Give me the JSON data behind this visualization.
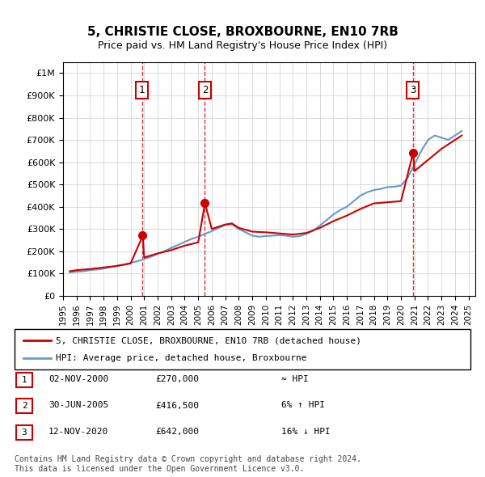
{
  "title": "5, CHRISTIE CLOSE, BROXBOURNE, EN10 7RB",
  "subtitle": "Price paid vs. HM Land Registry's House Price Index (HPI)",
  "ylim": [
    0,
    1050000
  ],
  "yticks": [
    0,
    100000,
    200000,
    300000,
    400000,
    500000,
    600000,
    700000,
    800000,
    900000,
    1000000
  ],
  "ytick_labels": [
    "£0",
    "£100K",
    "£200K",
    "£300K",
    "£400K",
    "£500K",
    "£600K",
    "£700K",
    "£800K",
    "£900K",
    "£1M"
  ],
  "xlabel_years": [
    "1995",
    "1996",
    "1997",
    "1998",
    "1999",
    "2000",
    "2001",
    "2002",
    "2003",
    "2004",
    "2005",
    "2006",
    "2007",
    "2008",
    "2009",
    "2010",
    "2011",
    "2012",
    "2013",
    "2014",
    "2015",
    "2016",
    "2017",
    "2018",
    "2019",
    "2020",
    "2021",
    "2022",
    "2023",
    "2024",
    "2025"
  ],
  "sale_dates": [
    "2000-11-02",
    "2005-06-30",
    "2020-11-12"
  ],
  "sale_prices": [
    270000,
    416500,
    642000
  ],
  "sale_labels": [
    "1",
    "2",
    "3"
  ],
  "sale_color": "#cc0000",
  "sale_dot_color": "#cc0000",
  "hpi_color": "#6699cc",
  "vline_color": "#cc0000",
  "background_color": "#ffffff",
  "grid_color": "#cccccc",
  "shading_color": "#ddeeff",
  "legend_entries": [
    "5, CHRISTIE CLOSE, BROXBOURNE, EN10 7RB (detached house)",
    "HPI: Average price, detached house, Broxbourne"
  ],
  "table_rows": [
    [
      "1",
      "02-NOV-2000",
      "£270,000",
      "≈ HPI"
    ],
    [
      "2",
      "30-JUN-2005",
      "£416,500",
      "6% ↑ HPI"
    ],
    [
      "3",
      "12-NOV-2020",
      "£642,000",
      "16% ↓ HPI"
    ]
  ],
  "footer": "Contains HM Land Registry data © Crown copyright and database right 2024.\nThis data is licensed under the Open Government Licence v3.0.",
  "hpi_data_years": [
    1995.5,
    1996,
    1996.5,
    1997,
    1997.5,
    1998,
    1998.5,
    1999,
    1999.5,
    2000,
    2000.5,
    2001,
    2001.5,
    2002,
    2002.5,
    2003,
    2003.5,
    2004,
    2004.5,
    2005,
    2005.5,
    2006,
    2006.5,
    2007,
    2007.5,
    2008,
    2008.5,
    2009,
    2009.5,
    2010,
    2010.5,
    2011,
    2011.5,
    2012,
    2012.5,
    2013,
    2013.5,
    2014,
    2014.5,
    2015,
    2015.5,
    2016,
    2016.5,
    2017,
    2017.5,
    2018,
    2018.5,
    2019,
    2019.5,
    2020,
    2020.5,
    2021,
    2021.5,
    2022,
    2022.5,
    2023,
    2023.5,
    2024,
    2024.5
  ],
  "hpi_data_values": [
    105000,
    108000,
    110000,
    115000,
    118000,
    122000,
    128000,
    135000,
    140000,
    148000,
    155000,
    165000,
    175000,
    188000,
    200000,
    215000,
    228000,
    242000,
    255000,
    265000,
    278000,
    290000,
    305000,
    318000,
    320000,
    300000,
    285000,
    270000,
    265000,
    268000,
    270000,
    272000,
    270000,
    265000,
    268000,
    278000,
    292000,
    315000,
    340000,
    365000,
    385000,
    400000,
    425000,
    450000,
    465000,
    475000,
    480000,
    488000,
    490000,
    495000,
    530000,
    590000,
    650000,
    700000,
    720000,
    710000,
    700000,
    720000,
    740000
  ],
  "sold_line_years": [
    1995.5,
    1996,
    1997,
    1998,
    1999,
    2000,
    2000.9,
    2001,
    2002,
    2003,
    2004,
    2005,
    2005.5,
    2006,
    2007,
    2007.5,
    2008,
    2009,
    2010,
    2011,
    2012,
    2013,
    2014,
    2015,
    2016,
    2017,
    2018,
    2019,
    2020,
    2020.9,
    2021,
    2022,
    2023,
    2024,
    2024.5
  ],
  "sold_line_values": [
    110000,
    115000,
    120000,
    127000,
    134000,
    145000,
    270000,
    172000,
    190000,
    205000,
    225000,
    240000,
    416500,
    300000,
    320000,
    325000,
    305000,
    288000,
    285000,
    280000,
    275000,
    282000,
    305000,
    335000,
    360000,
    390000,
    415000,
    420000,
    425000,
    642000,
    560000,
    610000,
    660000,
    700000,
    720000
  ]
}
